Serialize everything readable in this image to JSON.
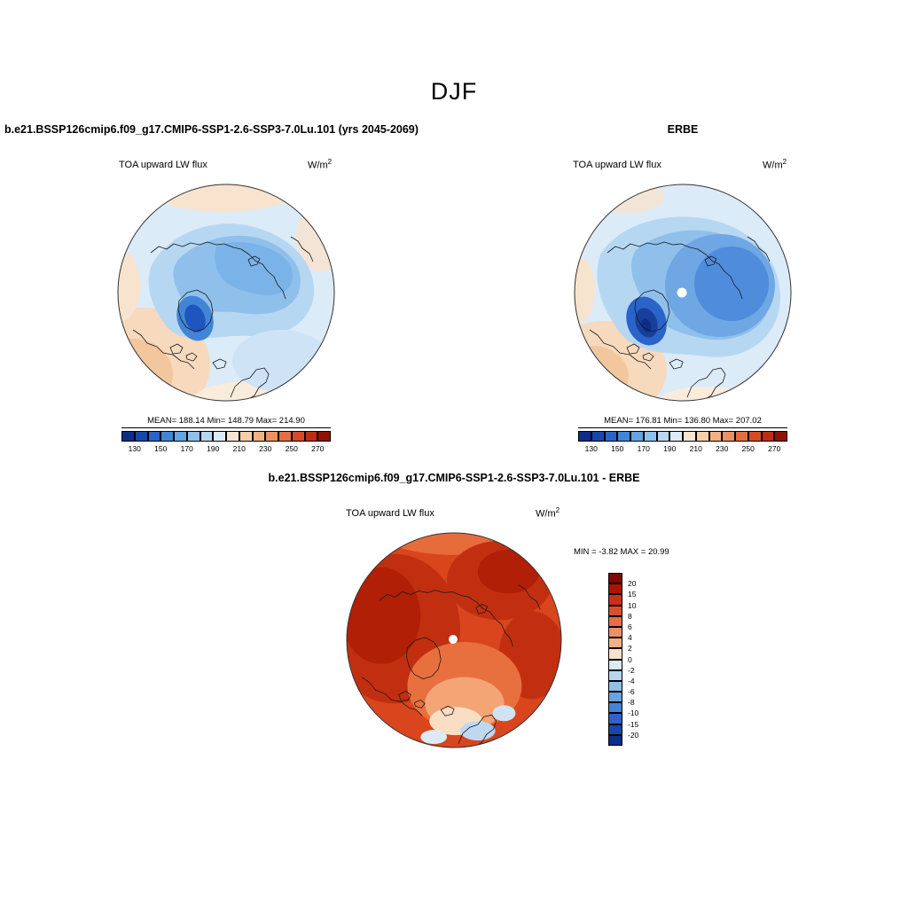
{
  "page": {
    "season_title": "DJF"
  },
  "panels": {
    "model": {
      "case_title": "b.e21.BSSP126cmip6.f09_g17.CMIP6-SSP1-2.6-SSP3-7.0Lu.101 (yrs 2045-2069)",
      "field_label": "TOA upward LW flux",
      "units_base": "W/m",
      "units_exp": "2",
      "stats": "MEAN= 188.14   Min= 148.79   Max= 214.90"
    },
    "obs": {
      "case_title": "ERBE",
      "field_label": "TOA upward LW flux",
      "units_base": "W/m",
      "units_exp": "2",
      "stats": "MEAN= 176.81   Min= 136.80   Max= 207.02"
    },
    "diff": {
      "case_title": "b.e21.BSSP126cmip6.f09_g17.CMIP6-SSP1-2.6-SSP3-7.0Lu.101 - ERBE",
      "field_label": "TOA upward LW flux",
      "units_base": "W/m",
      "units_exp": "2",
      "stats": "MIN =  -3.82 MAX =  20.99"
    }
  },
  "colorbar_main": {
    "ticks": [
      "130",
      "150",
      "170",
      "190",
      "210",
      "230",
      "250",
      "270"
    ],
    "colors": [
      "#0c2d8a",
      "#1846ad",
      "#2b64c8",
      "#4285d6",
      "#66a4e2",
      "#8fc0ec",
      "#b6d7f2",
      "#dcebf8",
      "#f9e4d0",
      "#f5cfa8",
      "#f0b285",
      "#ea9263",
      "#e26f44",
      "#d54b28",
      "#c02c12",
      "#8f1205"
    ]
  },
  "colorbar_diff": {
    "labels": [
      "20",
      "15",
      "10",
      "8",
      "6",
      "4",
      "2",
      "0",
      "-2",
      "-4",
      "-6",
      "-8",
      "-10",
      "-15",
      "-20"
    ],
    "colors": [
      "#7f0a04",
      "#a81603",
      "#c9301a",
      "#d94f2e",
      "#e56f45",
      "#ee9063",
      "#f4b086",
      "#f9e2cd",
      "#dcebf8",
      "#b6d7f2",
      "#8fc0ec",
      "#66a4e2",
      "#4285d6",
      "#2b64c8",
      "#1846ad",
      "#0c2d8a"
    ]
  },
  "chart_data": [
    {
      "type": "heatmap",
      "subtype": "polar-stereographic-contour-map",
      "title": "TOA upward LW flux",
      "season": "DJF",
      "dataset": "b.e21.BSSP126cmip6.f09_g17.CMIP6-SSP1-2.6-SSP3-7.0Lu.101 (yrs 2045-2069)",
      "units": "W/m^2",
      "stats": {
        "mean": 188.14,
        "min": 148.79,
        "max": 214.9
      },
      "contour_levels": [
        130,
        140,
        150,
        160,
        170,
        180,
        190,
        200,
        210,
        220,
        230,
        240,
        250,
        260,
        270
      ],
      "colorbar_ticks": [
        130,
        150,
        170,
        190,
        210,
        230,
        250,
        270
      ],
      "palette": "blue-to-red",
      "legend_position": "bottom",
      "notes": "Low OLR (blues) over central Arctic with darkest minimum near Greenland; higher OLR (pale orange) at map rim"
    },
    {
      "type": "heatmap",
      "subtype": "polar-stereographic-contour-map",
      "title": "TOA upward LW flux",
      "season": "DJF",
      "dataset": "ERBE",
      "units": "W/m^2",
      "stats": {
        "mean": 176.81,
        "min": 136.8,
        "max": 207.02
      },
      "contour_levels": [
        130,
        140,
        150,
        160,
        170,
        180,
        190,
        200,
        210,
        220,
        230,
        240,
        250,
        260,
        270
      ],
      "colorbar_ticks": [
        130,
        150,
        170,
        190,
        210,
        230,
        250,
        270
      ],
      "palette": "blue-to-red",
      "legend_position": "bottom",
      "notes": "Broad deeper-blue region over Arctic Ocean/Siberian side, dark minimum near Greenland, white dot at pole (no data)"
    },
    {
      "type": "heatmap",
      "subtype": "polar-stereographic-contour-map",
      "title": "TOA upward LW flux difference",
      "season": "DJF",
      "dataset": "b.e21.BSSP126cmip6.f09_g17.CMIP6-SSP1-2.6-SSP3-7.0Lu.101 - ERBE",
      "units": "W/m^2",
      "stats": {
        "min": -3.82,
        "max": 20.99
      },
      "contour_levels": [
        -20,
        -15,
        -10,
        -8,
        -6,
        -4,
        -2,
        0,
        2,
        4,
        6,
        8,
        10,
        15,
        20
      ],
      "palette": "red-positive-to-blue-negative",
      "legend_position": "right",
      "notes": "Mostly positive (red/dark-red) differences; small negative (light blue) patches near North Atlantic/Scandinavia; white dot at pole"
    }
  ]
}
